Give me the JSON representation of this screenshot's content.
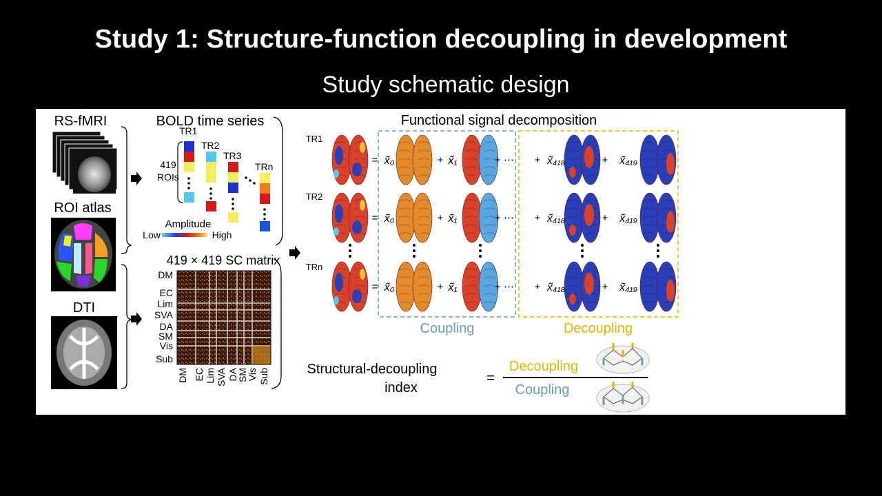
{
  "slide": {
    "title": "Study 1: Structure-function decoupling in development",
    "subtitle": "Study schematic design"
  },
  "left": {
    "rsfmri": "RS-fMRI",
    "roi_atlas": "ROI atlas",
    "dti": "DTI"
  },
  "bold": {
    "title": "BOLD time series",
    "rois_count": "419",
    "rois_label": "ROIs",
    "tr_labels": [
      "TR1",
      "TR2",
      "TR3",
      "TRn"
    ],
    "amplitude": "Amplitude",
    "low": "Low",
    "high": "High"
  },
  "sc": {
    "title": "419 × 419 SC matrix",
    "row_labels": [
      "DM",
      "EC",
      "Lim",
      "SVA",
      "DA",
      "SM",
      "Vis",
      "Sub"
    ],
    "col_labels": [
      "DM",
      "EC",
      "Lim",
      "SVA",
      "DA",
      "SM",
      "Vis",
      "Sub"
    ]
  },
  "decomp": {
    "title": "Functional signal decomposition",
    "rows": [
      "TR1",
      "TR2",
      "TRn"
    ],
    "terms": [
      "x̃₀",
      "x̃₁",
      "x̃₄₁₈",
      "x̃₄₁₉"
    ],
    "coupling_label": "Coupling",
    "decoupling_label": "Decoupling"
  },
  "index": {
    "label_line1": "Structural-decoupling",
    "label_line2": "index",
    "equals": "=",
    "numerator": "Decoupling",
    "denominator": "Coupling"
  },
  "colors": {
    "coupling": "#6b9bb5",
    "decoupling": "#e8b400",
    "brain_red": "#d9412b",
    "brain_blue": "#2a3fb8",
    "brain_orange": "#e58a2c",
    "brain_light_blue": "#5aa6e0"
  }
}
